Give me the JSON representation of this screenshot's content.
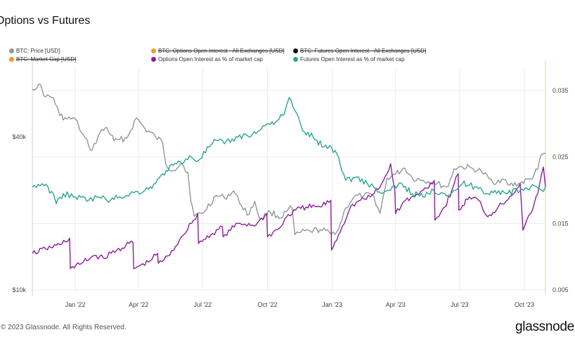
{
  "title": "Options vs Futures",
  "footer": "© 2023 Glassnode. All Rights Reserved.",
  "brand": "glassnode",
  "legend": [
    {
      "label": "BTC: Price [USD]",
      "color": "#8e979a",
      "disabled": false
    },
    {
      "label": "BTC: Options Open Interest - All Exchanges [USD]",
      "color": "#f09a2e",
      "disabled": true
    },
    {
      "label": "BTC: Futures Open Interest - All Exchanges [USD]",
      "color": "#111111",
      "disabled": true
    },
    {
      "label": "BTC: Market Cap [USD]",
      "color": "#f09a2e",
      "disabled": true
    },
    {
      "label": "Options Open Interest as % of market cap",
      "color": "#8b1f9b",
      "disabled": false
    },
    {
      "label": "Futures Open Interest as % of market cap",
      "color": "#2aa58e",
      "disabled": false
    }
  ],
  "chart_data": {
    "type": "line",
    "x_tick_labels": [
      "Jan '22",
      "Apr '22",
      "Jul '22",
      "Oct '22",
      "Jan '23",
      "Apr '23",
      "Jul '23",
      "Oct '23"
    ],
    "x_ticks": [
      "2022-01-01",
      "2022-04-01",
      "2022-07-01",
      "2022-10-01",
      "2023-01-01",
      "2023-04-01",
      "2023-07-01",
      "2023-10-01"
    ],
    "xlim": [
      "2021-11-01",
      "2023-10-31"
    ],
    "left_axis": {
      "scale": "log",
      "ticks": [
        10000,
        40000
      ],
      "tick_labels": [
        "$10k",
        "$40k"
      ],
      "ylim": [
        10000,
        75000
      ]
    },
    "right_axis": {
      "ticks": [
        0.005,
        0.015,
        0.025,
        0.035
      ],
      "tick_labels": [
        "0.005",
        "0.015",
        "0.025",
        "0.035"
      ],
      "ylim": [
        0.005,
        0.0385
      ]
    },
    "grid": true,
    "series": [
      {
        "name": "BTC: Price [USD]",
        "axis": "left",
        "color": "#8e979a",
        "x": [
          "2021-11-01",
          "2021-11-10",
          "2021-11-20",
          "2021-12-01",
          "2021-12-10",
          "2021-12-20",
          "2022-01-01",
          "2022-01-10",
          "2022-01-20",
          "2022-01-25",
          "2022-02-05",
          "2022-02-15",
          "2022-02-25",
          "2022-03-05",
          "2022-03-15",
          "2022-03-29",
          "2022-04-10",
          "2022-04-25",
          "2022-05-05",
          "2022-05-10",
          "2022-05-20",
          "2022-06-01",
          "2022-06-10",
          "2022-06-14",
          "2022-06-19",
          "2022-07-01",
          "2022-07-20",
          "2022-08-01",
          "2022-08-14",
          "2022-08-25",
          "2022-09-05",
          "2022-09-13",
          "2022-09-20",
          "2022-10-05",
          "2022-10-20",
          "2022-10-30",
          "2022-11-05",
          "2022-11-09",
          "2022-11-15",
          "2022-12-01",
          "2022-12-15",
          "2022-12-31",
          "2023-01-10",
          "2023-01-20",
          "2023-02-01",
          "2023-02-15",
          "2023-03-01",
          "2023-03-10",
          "2023-03-20",
          "2023-04-01",
          "2023-04-14",
          "2023-04-25",
          "2023-05-10",
          "2023-05-25",
          "2023-06-10",
          "2023-06-15",
          "2023-06-23",
          "2023-07-05",
          "2023-07-20",
          "2023-08-01",
          "2023-08-17",
          "2023-08-30",
          "2023-09-10",
          "2023-09-25",
          "2023-10-10",
          "2023-10-20",
          "2023-10-25",
          "2023-10-31"
        ],
        "values": [
          61500,
          64500,
          57500,
          57000,
          48500,
          47000,
          47000,
          41500,
          37000,
          35500,
          41500,
          43500,
          38500,
          39000,
          39500,
          47500,
          43000,
          40000,
          38000,
          31000,
          29500,
          31500,
          29000,
          22500,
          19500,
          20000,
          23500,
          23000,
          24500,
          21500,
          19800,
          22300,
          19000,
          20300,
          19200,
          20600,
          21000,
          16500,
          16800,
          17000,
          17300,
          16600,
          17300,
          21000,
          23200,
          23500,
          23400,
          20000,
          27500,
          28500,
          30200,
          27500,
          27000,
          26500,
          25500,
          25600,
          30000,
          30500,
          30000,
          29200,
          26500,
          27300,
          25800,
          26300,
          27300,
          29800,
          34000,
          34500
        ]
      },
      {
        "name": "Options Open Interest as % of market cap",
        "axis": "right",
        "color": "#8b1f9b",
        "x": [
          "2021-11-01",
          "2021-11-20",
          "2021-12-10",
          "2021-12-24",
          "2021-12-25",
          "2022-01-10",
          "2022-01-28",
          "2022-02-10",
          "2022-03-01",
          "2022-03-24",
          "2022-03-25",
          "2022-04-15",
          "2022-04-28",
          "2022-04-29",
          "2022-05-15",
          "2022-06-01",
          "2022-06-18",
          "2022-06-24",
          "2022-06-25",
          "2022-07-15",
          "2022-07-29",
          "2022-07-30",
          "2022-08-20",
          "2022-09-15",
          "2022-09-30",
          "2022-10-01",
          "2022-10-20",
          "2022-10-28",
          "2022-11-10",
          "2022-11-25",
          "2022-12-15",
          "2022-12-30",
          "2022-12-31",
          "2023-01-15",
          "2023-01-27",
          "2023-02-10",
          "2023-02-24",
          "2023-03-10",
          "2023-03-20",
          "2023-03-25",
          "2023-03-31",
          "2023-04-01",
          "2023-04-15",
          "2023-04-28",
          "2023-05-10",
          "2023-05-26",
          "2023-05-27",
          "2023-06-10",
          "2023-06-20",
          "2023-06-29",
          "2023-06-30",
          "2023-07-15",
          "2023-07-28",
          "2023-08-10",
          "2023-08-25",
          "2023-09-10",
          "2023-09-25",
          "2023-09-29",
          "2023-10-10",
          "2023-10-20",
          "2023-10-28",
          "2023-10-31"
        ],
        "values": [
          0.0105,
          0.0112,
          0.0118,
          0.0128,
          0.0082,
          0.009,
          0.0102,
          0.0098,
          0.011,
          0.0122,
          0.0082,
          0.0092,
          0.0105,
          0.009,
          0.0102,
          0.013,
          0.0155,
          0.0165,
          0.012,
          0.0135,
          0.0145,
          0.013,
          0.015,
          0.0148,
          0.0165,
          0.013,
          0.0145,
          0.016,
          0.017,
          0.0175,
          0.0175,
          0.0185,
          0.011,
          0.0145,
          0.0175,
          0.0185,
          0.019,
          0.0205,
          0.0225,
          0.024,
          0.02,
          0.0165,
          0.0185,
          0.019,
          0.02,
          0.0215,
          0.0155,
          0.0175,
          0.02,
          0.0225,
          0.017,
          0.019,
          0.0185,
          0.016,
          0.0175,
          0.019,
          0.021,
          0.014,
          0.0165,
          0.0195,
          0.0235,
          0.0205
        ]
      },
      {
        "name": "Futures Open Interest as % of market cap",
        "axis": "right",
        "color": "#2aa58e",
        "x": [
          "2021-11-01",
          "2021-11-15",
          "2021-12-01",
          "2021-12-05",
          "2021-12-15",
          "2022-01-01",
          "2022-01-20",
          "2022-02-01",
          "2022-02-20",
          "2022-03-05",
          "2022-03-20",
          "2022-04-10",
          "2022-04-25",
          "2022-05-10",
          "2022-05-25",
          "2022-06-15",
          "2022-06-25",
          "2022-07-10",
          "2022-07-20",
          "2022-08-01",
          "2022-08-20",
          "2022-09-10",
          "2022-09-20",
          "2022-09-30",
          "2022-10-15",
          "2022-10-25",
          "2022-11-01",
          "2022-11-09",
          "2022-11-20",
          "2022-12-05",
          "2022-12-20",
          "2022-12-31",
          "2023-01-10",
          "2023-01-20",
          "2023-02-05",
          "2023-02-20",
          "2023-03-01",
          "2023-03-12",
          "2023-03-25",
          "2023-04-10",
          "2023-04-25",
          "2023-05-10",
          "2023-05-25",
          "2023-06-10",
          "2023-06-25",
          "2023-07-05",
          "2023-07-25",
          "2023-08-10",
          "2023-08-20",
          "2023-09-05",
          "2023-09-25",
          "2023-10-10",
          "2023-10-25",
          "2023-10-31"
        ],
        "values": [
          0.0205,
          0.021,
          0.0195,
          0.018,
          0.0195,
          0.019,
          0.0185,
          0.019,
          0.0185,
          0.019,
          0.0195,
          0.02,
          0.021,
          0.023,
          0.024,
          0.025,
          0.0245,
          0.0265,
          0.0275,
          0.027,
          0.028,
          0.0285,
          0.029,
          0.03,
          0.0305,
          0.0315,
          0.034,
          0.032,
          0.029,
          0.028,
          0.0265,
          0.0265,
          0.025,
          0.0215,
          0.022,
          0.021,
          0.0205,
          0.0195,
          0.02,
          0.021,
          0.0195,
          0.019,
          0.02,
          0.0195,
          0.02,
          0.021,
          0.0205,
          0.0195,
          0.02,
          0.0195,
          0.02,
          0.0205,
          0.02,
          0.0205
        ]
      }
    ]
  }
}
